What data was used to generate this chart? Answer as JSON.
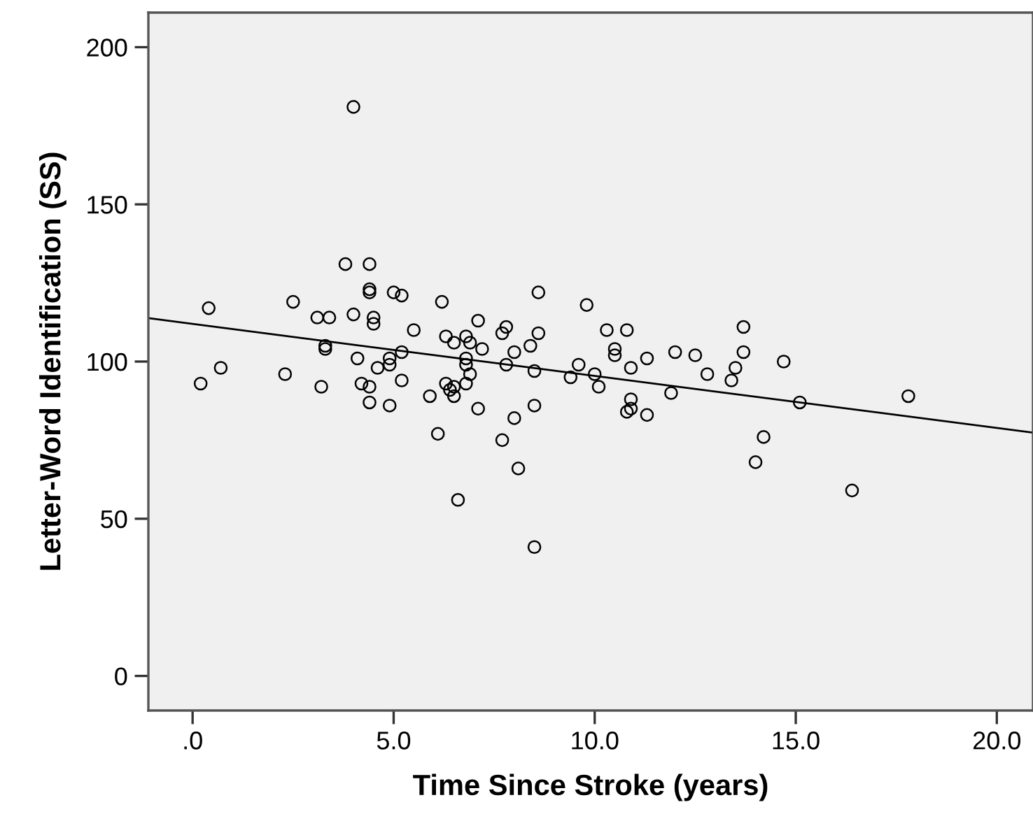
{
  "chart_data": {
    "type": "scatter",
    "xlabel": "Time Since Stroke (years)",
    "ylabel": "Letter-Word Identification (SS)",
    "xlim": [
      -1.1,
      20.9
    ],
    "ylim": [
      -11,
      211
    ],
    "xticks": [
      {
        "value": 0,
        "label": ".0"
      },
      {
        "value": 5,
        "label": "5.0"
      },
      {
        "value": 10,
        "label": "10.0"
      },
      {
        "value": 15,
        "label": "15.0"
      },
      {
        "value": 20,
        "label": "20.0"
      }
    ],
    "yticks": [
      0,
      50,
      100,
      150,
      200
    ],
    "grid": false,
    "legend": false,
    "marker": "circle",
    "series": [
      {
        "color": "#000000",
        "x": [
          4.0,
          3.8,
          4.4,
          4.4,
          4.4,
          5.0,
          5.2,
          6.2,
          8.6,
          0.4,
          2.5,
          3.1,
          3.4,
          4.0,
          4.5,
          4.5,
          5.5,
          7.1,
          7.8,
          7.7,
          8.6,
          6.3,
          6.5,
          6.8,
          6.9,
          7.2,
          8.0,
          8.4,
          3.3,
          3.3,
          5.2,
          4.1,
          4.9,
          4.6,
          4.9,
          6.8,
          6.8,
          6.9,
          7.8,
          8.5,
          9.4,
          9.6,
          0.7,
          2.3,
          0.2,
          9.8,
          3.2,
          4.2,
          4.4,
          4.4,
          4.9,
          5.2,
          5.9,
          6.3,
          6.4,
          6.5,
          6.5,
          6.8,
          7.1,
          6.1,
          7.7,
          8.0,
          8.1,
          8.5,
          6.6,
          8.5,
          10.3,
          10.8,
          10.5,
          10.5,
          13.7,
          13.7,
          12.0,
          12.5,
          11.3,
          10.9,
          10.0,
          12.8,
          13.5,
          13.4,
          14.7,
          10.1,
          10.9,
          10.8,
          10.9,
          11.3,
          11.9,
          15.1,
          17.8,
          14.2,
          14.0,
          16.4
        ],
        "values": [
          181,
          131,
          131,
          123,
          122,
          122,
          121,
          119,
          122,
          117,
          119,
          114,
          114,
          115,
          114,
          112,
          110,
          113,
          111,
          109,
          109,
          108,
          106,
          108,
          106,
          104,
          103,
          105,
          105,
          104,
          103,
          101,
          101,
          98,
          99,
          101,
          99,
          96,
          99,
          97,
          95,
          99,
          98,
          96,
          93,
          118,
          92,
          93,
          92,
          87,
          86,
          94,
          89,
          93,
          91,
          92,
          89,
          93,
          85,
          77,
          75,
          82,
          66,
          86,
          56,
          41,
          110,
          110,
          104,
          102,
          111,
          103,
          103,
          102,
          101,
          98,
          96,
          96,
          98,
          94,
          100,
          92,
          88,
          84,
          85,
          83,
          90,
          87,
          89,
          76,
          68,
          59
        ]
      },
      {
        "type": "line",
        "color": "#000000",
        "marker": "none",
        "x": [
          -1.1,
          20.9
        ],
        "values": [
          113.8,
          77.4
        ]
      }
    ]
  }
}
